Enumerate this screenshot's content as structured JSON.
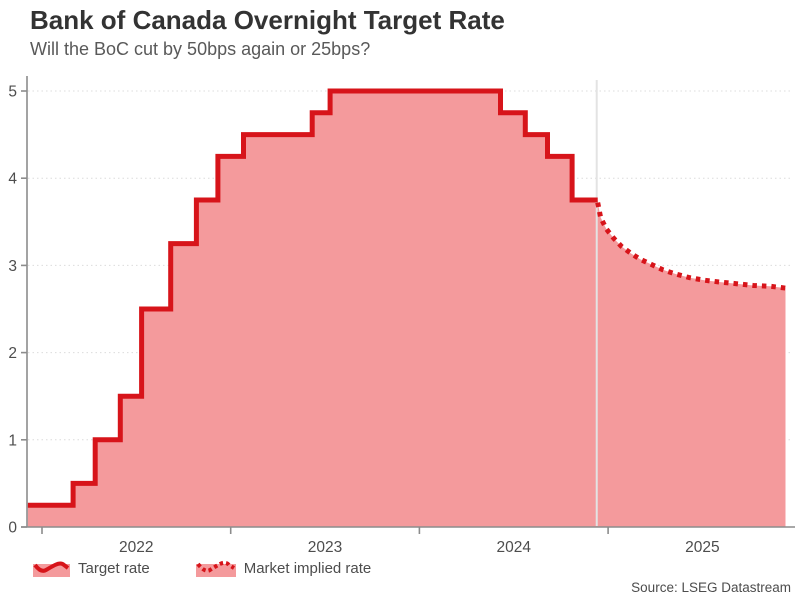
{
  "header": {
    "title": "Bank of Canada Overnight Target Rate",
    "subtitle": "Will the BoC cut by 50bps again or 25bps?"
  },
  "legend": {
    "items": [
      {
        "label": "Target rate",
        "style": "solid"
      },
      {
        "label": "Market implied rate",
        "style": "dotted"
      }
    ]
  },
  "footer": {
    "source": "Source: LSEG Datastream"
  },
  "colors": {
    "line_red": "#d7141a",
    "area_pink": "#f49a9c",
    "grid": "#dcdcdc",
    "axis": "#8c8c8c",
    "tick_text": "#4d4d4d",
    "title_text": "#333333",
    "subtitle_text": "#595959",
    "forecast_divider": "#e3e3e3"
  },
  "chart_data": {
    "type": "area",
    "title": "Bank of Canada Overnight Target Rate",
    "subtitle": "Will the BoC cut by 50bps again or 25bps?",
    "xlabel": "",
    "ylabel": "",
    "ylim": [
      0,
      5.15
    ],
    "yticks": [
      0,
      1,
      2,
      3,
      4,
      5
    ],
    "xticks_years": [
      2022,
      2023,
      2024,
      2025
    ],
    "x_range_years": [
      2021.925,
      2025.96
    ],
    "grid": "horizontal-dotted",
    "legend_position": "bottom-left",
    "series": [
      {
        "name": "Target rate",
        "style": "solid-step",
        "end_t": 2024.945,
        "points": [
          {
            "date": "2021-12",
            "t": 2021.925,
            "rate": 0.25
          },
          {
            "date": "2022-03",
            "t": 2022.165,
            "rate": 0.5
          },
          {
            "date": "2022-04",
            "t": 2022.282,
            "rate": 1.0
          },
          {
            "date": "2022-06",
            "t": 2022.415,
            "rate": 1.5
          },
          {
            "date": "2022-07",
            "t": 2022.528,
            "rate": 2.5
          },
          {
            "date": "2022-09",
            "t": 2022.682,
            "rate": 3.25
          },
          {
            "date": "2022-10",
            "t": 2022.818,
            "rate": 3.75
          },
          {
            "date": "2022-12",
            "t": 2022.932,
            "rate": 4.25
          },
          {
            "date": "2023-01",
            "t": 2023.068,
            "rate": 4.5
          },
          {
            "date": "2023-06",
            "t": 2023.432,
            "rate": 4.75
          },
          {
            "date": "2023-07",
            "t": 2023.527,
            "rate": 5.0
          },
          {
            "date": "2024-06",
            "t": 2024.43,
            "rate": 4.75
          },
          {
            "date": "2024-07",
            "t": 2024.561,
            "rate": 4.5
          },
          {
            "date": "2024-09",
            "t": 2024.679,
            "rate": 4.25
          },
          {
            "date": "2024-10",
            "t": 2024.809,
            "rate": 3.75
          }
        ]
      },
      {
        "name": "Market implied rate",
        "style": "dotted",
        "points": [
          {
            "t": 2024.945,
            "rate": 3.72
          },
          {
            "t": 2024.96,
            "rate": 3.55
          },
          {
            "t": 2024.99,
            "rate": 3.42
          },
          {
            "t": 2025.03,
            "rate": 3.31
          },
          {
            "t": 2025.07,
            "rate": 3.22
          },
          {
            "t": 2025.12,
            "rate": 3.14
          },
          {
            "t": 2025.17,
            "rate": 3.07
          },
          {
            "t": 2025.23,
            "rate": 3.01
          },
          {
            "t": 2025.29,
            "rate": 2.95
          },
          {
            "t": 2025.36,
            "rate": 2.9
          },
          {
            "t": 2025.43,
            "rate": 2.86
          },
          {
            "t": 2025.51,
            "rate": 2.83
          },
          {
            "t": 2025.59,
            "rate": 2.81
          },
          {
            "t": 2025.68,
            "rate": 2.79
          },
          {
            "t": 2025.77,
            "rate": 2.77
          },
          {
            "t": 2025.86,
            "rate": 2.76
          },
          {
            "t": 2025.94,
            "rate": 2.74
          }
        ]
      }
    ]
  }
}
